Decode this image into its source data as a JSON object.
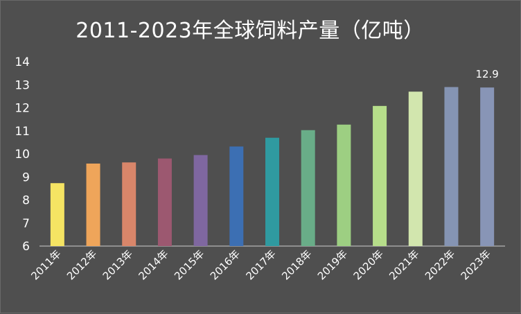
{
  "chart_data": {
    "type": "bar",
    "title": "2011-2023年全球饲料产量（亿吨）",
    "categories": [
      "2011年",
      "2012年",
      "2013年",
      "2014年",
      "2015年",
      "2016年",
      "2017年",
      "2018年",
      "2019年",
      "2020年",
      "2021年",
      "2022年",
      "2023年"
    ],
    "values": [
      8.73,
      9.58,
      9.63,
      9.8,
      9.95,
      10.32,
      10.7,
      11.03,
      11.27,
      12.08,
      12.7,
      12.9,
      12.88
    ],
    "data_labels": [
      null,
      null,
      null,
      null,
      null,
      null,
      null,
      null,
      null,
      null,
      null,
      null,
      "12.9"
    ],
    "ylim": [
      6,
      14
    ],
    "yticks": [
      6,
      7,
      8,
      9,
      10,
      11,
      12,
      13,
      14
    ],
    "xlabel": "",
    "ylabel": "",
    "grid": false,
    "bar_colors": [
      "#f5e463",
      "#efa55a",
      "#d9866a",
      "#9c5870",
      "#7f67a0",
      "#3c6fb3",
      "#2f9aa0",
      "#69ad88",
      "#9dcf82",
      "#b6de8a",
      "#d2e6ae",
      "#8594b3",
      "#8895b6"
    ]
  }
}
